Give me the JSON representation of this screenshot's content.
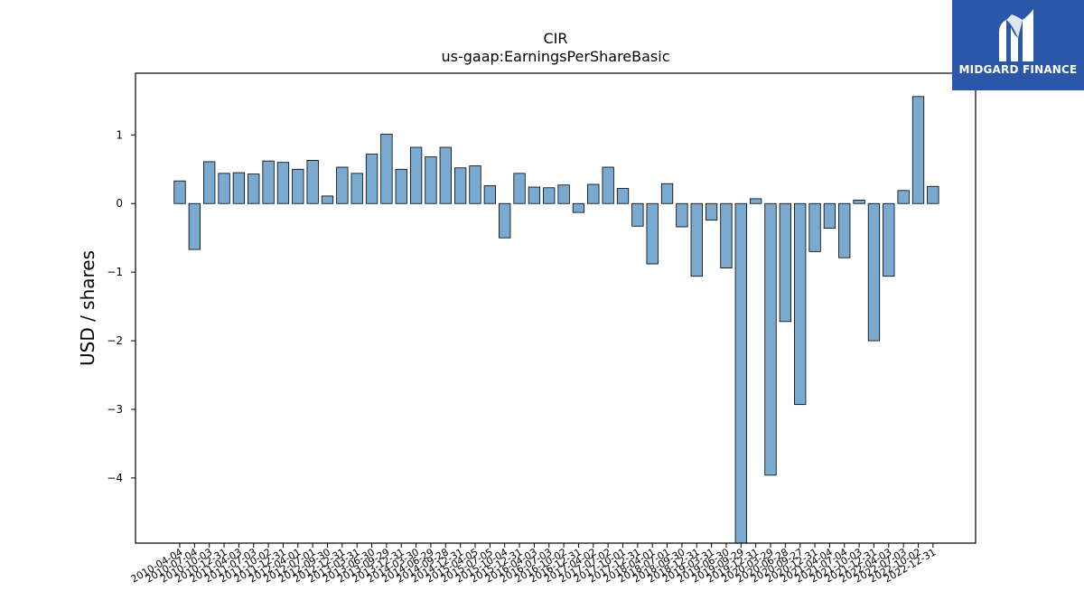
{
  "brand": {
    "name": "MIDGARD FINANCE",
    "color": "#2b57a8",
    "icon": "midgard-m-logo"
  },
  "chart_data": {
    "type": "bar",
    "title": "CIR",
    "subtitle": "us-gaap:EarningsPerShareBasic",
    "xlabel": "",
    "ylabel": "USD / shares",
    "ylim": [
      -4.95,
      1.9
    ],
    "yticks": [
      1,
      0,
      -1,
      -2,
      -3,
      -4
    ],
    "grid": false,
    "bar_color": "#7aaad0",
    "edge_color": "#000000",
    "categories": [
      "2010-04-04",
      "2010-07-04",
      "2010-10-03",
      "2010-12-31",
      "2011-04-03",
      "2011-07-03",
      "2011-10-02",
      "2011-12-31",
      "2012-04-01",
      "2012-07-01",
      "2012-09-30",
      "2012-12-31",
      "2013-03-31",
      "2013-06-30",
      "2013-09-29",
      "2013-12-31",
      "2014-03-30",
      "2014-06-29",
      "2014-09-28",
      "2014-12-31",
      "2015-04-05",
      "2015-07-05",
      "2015-10-04",
      "2015-12-31",
      "2016-04-03",
      "2016-07-03",
      "2016-10-02",
      "2016-12-31",
      "2017-04-02",
      "2017-07-02",
      "2017-10-01",
      "2017-12-31",
      "2018-04-01",
      "2018-07-01",
      "2018-09-30",
      "2018-12-31",
      "2019-03-31",
      "2019-06-30",
      "2019-09-29",
      "2019-12-31",
      "2020-03-29",
      "2020-06-28",
      "2020-09-27",
      "2020-12-31",
      "2021-04-04",
      "2021-07-04",
      "2021-10-03",
      "2021-12-31",
      "2022-04-03",
      "2022-07-03",
      "2022-10-02",
      "2022-12-31"
    ],
    "values": [
      0.33,
      -0.67,
      0.61,
      0.44,
      0.45,
      0.43,
      0.62,
      0.6,
      0.5,
      0.63,
      0.11,
      0.53,
      0.44,
      0.72,
      1.01,
      0.5,
      0.82,
      0.68,
      0.82,
      0.52,
      0.55,
      0.26,
      -0.5,
      0.44,
      0.24,
      0.23,
      0.27,
      -0.13,
      0.28,
      0.53,
      0.22,
      -0.33,
      -0.88,
      0.29,
      -0.34,
      -1.06,
      -0.24,
      -0.94,
      -4.95,
      0.07,
      -3.96,
      -1.72,
      -2.93,
      -0.7,
      -0.36,
      -0.79,
      0.05,
      -2.0,
      -1.06,
      0.19,
      1.56,
      0.25
    ]
  }
}
